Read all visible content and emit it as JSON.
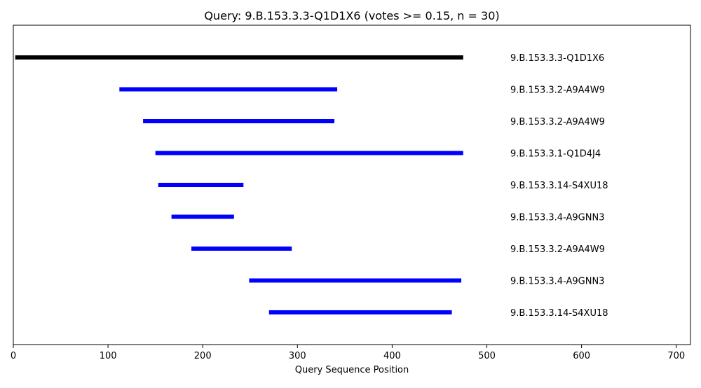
{
  "chart_data": {
    "type": "bar",
    "orientation": "horizontal-range",
    "title": "Query: 9.B.153.3.3-Q1D1X6 (votes >= 0.15, n = 30)",
    "xlabel": "Query Sequence Position",
    "ylabel": "",
    "xlim": [
      0,
      715
    ],
    "xticks": [
      0,
      100,
      200,
      300,
      400,
      500,
      600,
      700
    ],
    "grid": false,
    "legend": "none",
    "series": [
      {
        "label": "9.B.153.3.3-Q1D1X6",
        "start": 2,
        "end": 475,
        "color": "#000000"
      },
      {
        "label": "9.B.153.3.2-A9A4W9",
        "start": 112,
        "end": 342,
        "color": "#0000ff"
      },
      {
        "label": "9.B.153.3.2-A9A4W9",
        "start": 137,
        "end": 339,
        "color": "#0000ff"
      },
      {
        "label": "9.B.153.3.1-Q1D4J4",
        "start": 150,
        "end": 475,
        "color": "#0000ff"
      },
      {
        "label": "9.B.153.3.14-S4XU18",
        "start": 153,
        "end": 243,
        "color": "#0000ff"
      },
      {
        "label": "9.B.153.3.4-A9GNN3",
        "start": 167,
        "end": 233,
        "color": "#0000ff"
      },
      {
        "label": "9.B.153.3.2-A9A4W9",
        "start": 188,
        "end": 294,
        "color": "#0000ff"
      },
      {
        "label": "9.B.153.3.4-A9GNN3",
        "start": 249,
        "end": 473,
        "color": "#0000ff"
      },
      {
        "label": "9.B.153.3.14-S4XU18",
        "start": 270,
        "end": 463,
        "color": "#0000ff"
      }
    ]
  }
}
